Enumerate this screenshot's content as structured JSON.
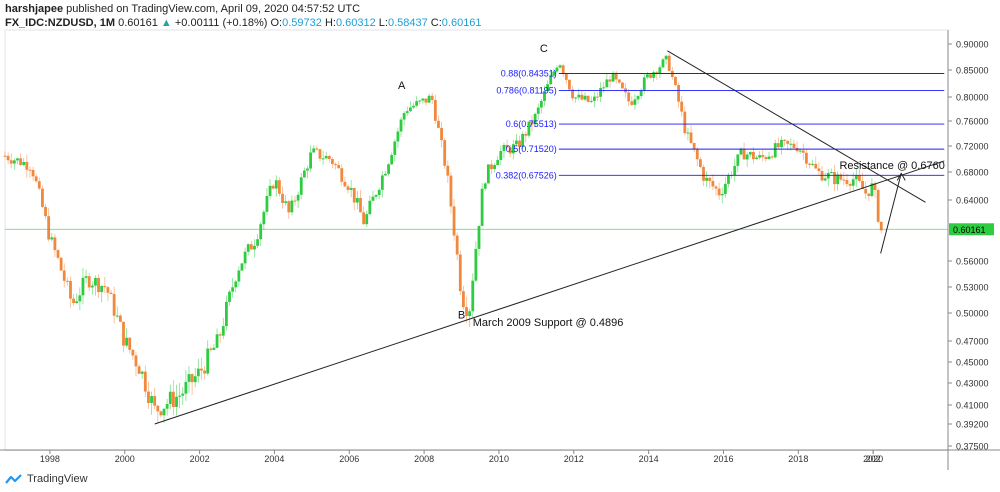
{
  "header": {
    "author": "harshjapee",
    "published_text": "published on TradingView.com, April 09, 2020 04:57:52 UTC",
    "symbol": "FX_IDC:NZDUSD, 1M",
    "last": "0.60161",
    "change_arrow": "▲",
    "change": "+0.00111 (+0.18%)",
    "o_label": "O:",
    "o_value": "0.59732",
    "h_label": "H:",
    "h_value": "0.60312",
    "l_label": "L:",
    "l_value": "0.58437",
    "c_label": "C:",
    "c_value": "0.60161"
  },
  "footer": {
    "brand": "TradingView",
    "logo_icon": "tradingview-logo-icon"
  },
  "colors": {
    "up": "#2ecc40",
    "down": "#f0883e",
    "fib": "#1a1aff",
    "price_line": "#2ecc40",
    "trend": "#222222"
  },
  "chart_data": {
    "type": "candlestick",
    "title": "",
    "ylim": [
      0.375,
      0.9
    ],
    "xlim": [
      1996.8,
      2022.0
    ],
    "y_ticks": [
      "0.90000",
      "0.85000",
      "0.80000",
      "0.76000",
      "0.72000",
      "0.68000",
      "0.64000",
      "0.60161",
      "0.56000",
      "0.53000",
      "0.50000",
      "0.47000",
      "0.45000",
      "0.43000",
      "0.41000",
      "0.39200",
      "0.37500"
    ],
    "x_ticks": [
      "1998",
      "2000",
      "2002",
      "2004",
      "2006",
      "2008",
      "2010",
      "2012",
      "2014",
      "2016",
      "2018",
      "2020",
      "202"
    ],
    "current_price": 0.60161,
    "series_path": [
      [
        1996.8,
        0.705
      ],
      [
        1997.5,
        0.69
      ],
      [
        1998.0,
        0.59
      ],
      [
        1998.6,
        0.51
      ],
      [
        1999.0,
        0.54
      ],
      [
        1999.5,
        0.53
      ],
      [
        2000.0,
        0.47
      ],
      [
        2000.4,
        0.445
      ],
      [
        2000.8,
        0.405
      ],
      [
        2001.5,
        0.42
      ],
      [
        2002.0,
        0.44
      ],
      [
        2002.5,
        0.47
      ],
      [
        2003.0,
        0.55
      ],
      [
        2003.5,
        0.59
      ],
      [
        2004.0,
        0.67
      ],
      [
        2004.4,
        0.62
      ],
      [
        2005.0,
        0.71
      ],
      [
        2005.5,
        0.7
      ],
      [
        2006.0,
        0.66
      ],
      [
        2006.4,
        0.61
      ],
      [
        2007.0,
        0.69
      ],
      [
        2007.5,
        0.78
      ],
      [
        2007.9,
        0.79
      ],
      [
        2008.2,
        0.8
      ],
      [
        2008.6,
        0.68
      ],
      [
        2009.0,
        0.52
      ],
      [
        2009.2,
        0.5
      ],
      [
        2009.6,
        0.67
      ],
      [
        2010.0,
        0.71
      ],
      [
        2010.5,
        0.72
      ],
      [
        2011.0,
        0.77
      ],
      [
        2011.6,
        0.87
      ],
      [
        2012.0,
        0.8
      ],
      [
        2012.5,
        0.79
      ],
      [
        2013.0,
        0.84
      ],
      [
        2013.5,
        0.79
      ],
      [
        2014.0,
        0.84
      ],
      [
        2014.5,
        0.87
      ],
      [
        2015.0,
        0.74
      ],
      [
        2015.5,
        0.67
      ],
      [
        2015.9,
        0.65
      ],
      [
        2016.5,
        0.71
      ],
      [
        2017.0,
        0.7
      ],
      [
        2017.5,
        0.72
      ],
      [
        2018.0,
        0.72
      ],
      [
        2018.5,
        0.68
      ],
      [
        2019.0,
        0.67
      ],
      [
        2019.5,
        0.67
      ],
      [
        2019.8,
        0.65
      ],
      [
        2020.0,
        0.66
      ],
      [
        2020.2,
        0.6
      ]
    ],
    "fib_levels": [
      {
        "label": "0.88(0.84351)",
        "value": 0.8435
      },
      {
        "label": "0.786(0.81195)",
        "value": 0.812
      },
      {
        "label": "0.6(0.75513)",
        "value": 0.7551
      },
      {
        "label": "0.5(0.71520)",
        "value": 0.7152
      },
      {
        "label": "0.382(0.67526)",
        "value": 0.6753
      }
    ],
    "fib_start": 2011.6,
    "fib_end": 2021.9,
    "trendlines": [
      {
        "name": "support-trendline",
        "from": [
          2000.8,
          0.392
        ],
        "to": [
          2021.9,
          0.697
        ]
      },
      {
        "name": "resistance-trendline",
        "from": [
          2014.5,
          0.887
        ],
        "to": [
          2021.4,
          0.637
        ]
      },
      {
        "name": "projection-arrow",
        "from": [
          2020.2,
          0.57
        ],
        "to": [
          2020.75,
          0.678
        ]
      }
    ],
    "annotations": [
      {
        "text": "A",
        "x": 2007.4,
        "y": 0.815
      },
      {
        "text": "B",
        "x": 2009.0,
        "y": 0.494
      },
      {
        "text": "C",
        "x": 2011.2,
        "y": 0.885
      },
      {
        "text": "March 2009 Support @ 0.4896",
        "x": 2009.3,
        "y": 0.486
      },
      {
        "text": "Resistance @ 0.6760",
        "x": 2019.1,
        "y": 0.685
      }
    ]
  }
}
